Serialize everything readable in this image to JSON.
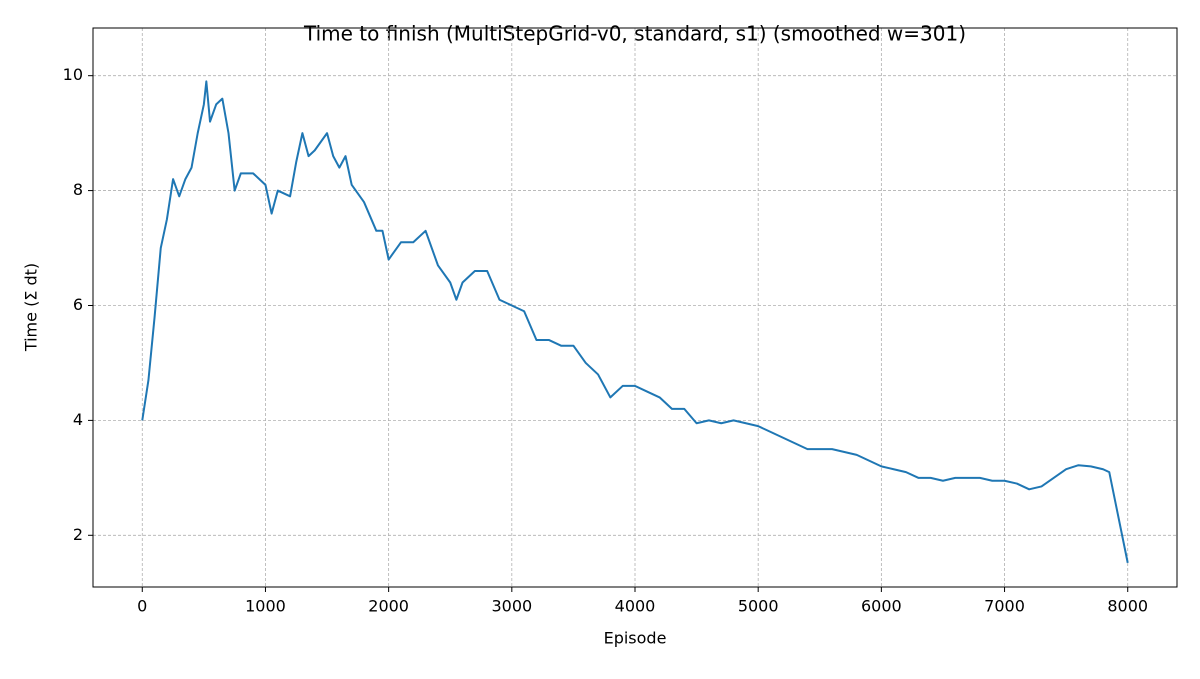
{
  "chart_data": {
    "type": "line",
    "title": "Time to finish (MultiStepGrid-v0, standard, s1) (smoothed w=301)",
    "x_label": "Episode",
    "y_label": "Time (Σ dt)",
    "x": [
      0,
      50,
      100,
      150,
      200,
      250,
      300,
      350,
      400,
      450,
      500,
      520,
      550,
      600,
      650,
      700,
      750,
      800,
      900,
      1000,
      1050,
      1100,
      1200,
      1250,
      1300,
      1350,
      1400,
      1500,
      1550,
      1600,
      1650,
      1700,
      1800,
      1900,
      1950,
      2000,
      2100,
      2200,
      2300,
      2400,
      2500,
      2550,
      2600,
      2700,
      2800,
      2900,
      3000,
      3100,
      3200,
      3300,
      3400,
      3500,
      3600,
      3700,
      3800,
      3900,
      4000,
      4100,
      4200,
      4300,
      4400,
      4500,
      4600,
      4700,
      4800,
      4900,
      5000,
      5100,
      5200,
      5300,
      5400,
      5500,
      5600,
      5700,
      5800,
      5900,
      6000,
      6100,
      6200,
      6300,
      6400,
      6500,
      6600,
      6700,
      6800,
      6900,
      7000,
      7100,
      7200,
      7300,
      7400,
      7500,
      7600,
      7700,
      7800,
      7850,
      8000
    ],
    "series": [
      {
        "name": "Time",
        "color": "#1f77b4",
        "values": [
          4.0,
          4.7,
          5.8,
          7.0,
          7.5,
          8.2,
          7.9,
          8.2,
          8.4,
          9.0,
          9.5,
          9.9,
          9.2,
          9.5,
          9.6,
          9.0,
          8.0,
          8.3,
          8.3,
          8.1,
          7.6,
          8.0,
          7.9,
          8.5,
          9.0,
          8.6,
          8.7,
          9.0,
          8.6,
          8.4,
          8.6,
          8.1,
          7.8,
          7.3,
          7.3,
          6.8,
          7.1,
          7.1,
          7.3,
          6.7,
          6.4,
          6.1,
          6.4,
          6.6,
          6.6,
          6.1,
          6.0,
          5.9,
          5.4,
          5.4,
          5.3,
          5.3,
          5.0,
          4.8,
          4.4,
          4.6,
          4.6,
          4.5,
          4.4,
          4.2,
          4.2,
          3.95,
          4.0,
          3.95,
          4.0,
          3.95,
          3.9,
          3.8,
          3.7,
          3.6,
          3.5,
          3.5,
          3.5,
          3.45,
          3.4,
          3.3,
          3.2,
          3.15,
          3.1,
          3.0,
          3.0,
          2.95,
          3.0,
          3.0,
          3.0,
          2.95,
          2.95,
          2.9,
          2.8,
          2.85,
          3.0,
          3.15,
          3.22,
          3.2,
          3.15,
          3.1,
          1.52
        ]
      }
    ],
    "xlim": [
      -400,
      8400
    ],
    "ylim": [
      1.1,
      10.83
    ],
    "xticks": [
      0,
      1000,
      2000,
      3000,
      4000,
      5000,
      6000,
      7000,
      8000
    ],
    "yticks": [
      2,
      4,
      6,
      8,
      10
    ],
    "grid": true
  }
}
